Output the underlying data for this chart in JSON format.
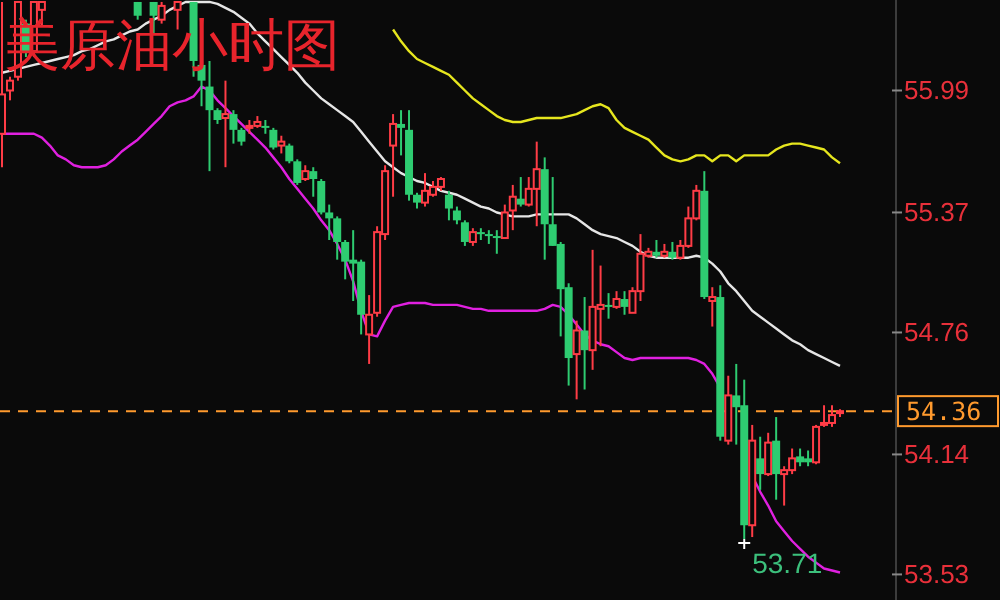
{
  "chart_data": {
    "type": "candlestick",
    "title": "美原油小时图",
    "categories": [
      null,
      null,
      null,
      null,
      null,
      null,
      null,
      null,
      null,
      null,
      null,
      null,
      null,
      null,
      null,
      null,
      null,
      null,
      null,
      null,
      null,
      null,
      null,
      null,
      null,
      null,
      null,
      null,
      null,
      null,
      null,
      null,
      null,
      null,
      null,
      null,
      null,
      null,
      null,
      null,
      null,
      null,
      null,
      null,
      null,
      null,
      null,
      null,
      null,
      null,
      null,
      null,
      null,
      null,
      null,
      null,
      null,
      null,
      null,
      null,
      null,
      null,
      null,
      null,
      null,
      null,
      null,
      null,
      null,
      null,
      null,
      null,
      null,
      null,
      null,
      null,
      null,
      null,
      null,
      null,
      null,
      null,
      null,
      null,
      null,
      null,
      null,
      null,
      null,
      null,
      null,
      null,
      null,
      null,
      null,
      null,
      null,
      null,
      null,
      null,
      null,
      null,
      null,
      null,
      null,
      null
    ],
    "ohlc": [
      [
        55.77,
        56.44,
        55.6,
        55.97
      ],
      [
        55.99,
        56.06,
        55.94,
        56.04
      ],
      [
        56.06,
        56.44,
        56.04,
        56.44
      ],
      [
        56.33,
        56.35,
        56.16,
        56.19
      ],
      [
        56.19,
        56.44,
        56.16,
        56.44
      ],
      [
        56.4,
        56.44,
        56.32,
        56.44
      ],
      null,
      null,
      null,
      null,
      null,
      null,
      null,
      null,
      null,
      null,
      null,
      [
        56.44,
        56.44,
        56.35,
        56.37
      ],
      null,
      [
        56.44,
        56.44,
        56.28,
        56.37
      ],
      [
        56.35,
        56.44,
        56.33,
        56.42
      ],
      null,
      [
        56.4,
        56.44,
        56.3,
        56.44
      ],
      null,
      [
        56.44,
        56.44,
        56.06,
        56.14
      ],
      [
        56.12,
        56.14,
        55.91,
        56.04
      ],
      [
        56.01,
        56.14,
        55.58,
        55.89
      ],
      [
        55.89,
        55.9,
        55.82,
        55.84
      ],
      [
        55.85,
        56.04,
        55.6,
        55.87
      ],
      [
        55.87,
        55.89,
        55.72,
        55.79
      ],
      [
        55.79,
        55.8,
        55.71,
        55.73
      ],
      [
        55.8,
        55.84,
        55.77,
        55.81
      ],
      [
        55.81,
        55.86,
        55.8,
        55.83
      ],
      [
        55.81,
        55.84,
        55.77,
        55.8
      ],
      [
        55.79,
        55.8,
        55.69,
        55.7
      ],
      [
        55.71,
        55.76,
        55.67,
        55.73
      ],
      [
        55.71,
        55.72,
        55.62,
        55.63
      ],
      [
        55.63,
        55.64,
        55.51,
        55.52
      ],
      [
        55.54,
        55.61,
        55.53,
        55.58
      ],
      [
        55.58,
        55.6,
        55.45,
        55.54
      ],
      [
        55.53,
        55.54,
        55.36,
        55.37
      ],
      [
        55.37,
        55.41,
        55.23,
        55.34
      ],
      [
        55.34,
        55.35,
        55.13,
        55.22
      ],
      [
        55.22,
        55.23,
        55.03,
        55.12
      ],
      [
        55.13,
        55.28,
        54.92,
        55.11
      ],
      [
        55.12,
        55.13,
        54.75,
        54.85
      ],
      [
        54.75,
        54.95,
        54.6,
        54.85
      ],
      [
        54.86,
        55.3,
        54.84,
        55.27
      ],
      [
        55.26,
        55.61,
        55.23,
        55.58
      ],
      [
        55.71,
        55.87,
        55.45,
        55.82
      ],
      [
        55.82,
        55.89,
        55.66,
        55.8
      ],
      [
        55.79,
        55.89,
        55.43,
        55.46
      ],
      [
        55.46,
        55.47,
        55.39,
        55.42
      ],
      [
        55.42,
        55.57,
        55.4,
        55.48
      ],
      [
        55.46,
        55.53,
        55.45,
        55.5
      ],
      [
        55.5,
        55.55,
        55.48,
        55.54
      ],
      [
        55.46,
        55.48,
        55.33,
        55.39
      ],
      [
        55.38,
        55.4,
        55.31,
        55.33
      ],
      [
        55.32,
        55.33,
        55.2,
        55.22
      ],
      [
        55.22,
        55.29,
        55.2,
        55.27
      ],
      [
        55.27,
        55.29,
        55.23,
        55.26
      ],
      [
        55.26,
        55.28,
        55.21,
        55.25
      ],
      [
        55.25,
        55.28,
        55.16,
        55.24
      ],
      [
        55.24,
        55.41,
        55.24,
        55.37
      ],
      [
        55.38,
        55.51,
        55.28,
        55.45
      ],
      [
        55.44,
        55.55,
        55.4,
        55.41
      ],
      [
        55.41,
        55.55,
        55.4,
        55.49
      ],
      [
        55.49,
        55.73,
        55.3,
        55.59
      ],
      [
        55.59,
        55.65,
        55.13,
        55.31
      ],
      [
        55.31,
        55.55,
        55.2,
        55.2
      ],
      [
        55.21,
        55.22,
        54.74,
        54.98
      ],
      [
        54.99,
        55.01,
        54.49,
        54.63
      ],
      [
        54.65,
        54.82,
        54.42,
        54.77
      ],
      [
        54.77,
        54.94,
        54.47,
        54.67
      ],
      [
        54.67,
        55.18,
        54.57,
        54.89
      ],
      [
        54.88,
        55.1,
        54.69,
        54.9
      ],
      [
        54.9,
        54.96,
        54.83,
        54.89
      ],
      [
        54.89,
        54.97,
        54.88,
        54.93
      ],
      [
        54.93,
        54.97,
        54.85,
        54.89
      ],
      [
        54.86,
        54.99,
        54.86,
        54.97
      ],
      [
        54.97,
        55.26,
        54.92,
        55.16
      ],
      [
        55.15,
        55.19,
        55.14,
        55.17
      ],
      [
        55.17,
        55.23,
        55.14,
        55.15
      ],
      [
        55.15,
        55.21,
        55.14,
        55.17
      ],
      [
        55.17,
        55.22,
        55.13,
        55.14
      ],
      [
        55.14,
        55.23,
        55.13,
        55.2
      ],
      [
        55.2,
        55.4,
        55.19,
        55.34
      ],
      [
        55.34,
        55.51,
        55.33,
        55.48
      ],
      [
        55.48,
        55.58,
        54.93,
        54.94
      ],
      [
        54.92,
        54.99,
        54.79,
        54.94
      ],
      [
        54.94,
        55.0,
        54.21,
        54.23
      ],
      [
        54.21,
        54.54,
        54.19,
        54.44
      ],
      [
        54.44,
        54.6,
        54.19,
        54.38
      ],
      [
        54.39,
        54.52,
        53.71,
        53.78
      ],
      [
        53.78,
        54.29,
        53.72,
        54.21
      ],
      [
        54.12,
        54.23,
        53.96,
        54.04
      ],
      [
        54.04,
        54.25,
        54.03,
        54.2
      ],
      [
        54.21,
        54.33,
        53.91,
        54.04
      ],
      [
        54.04,
        54.08,
        53.88,
        54.06
      ],
      [
        54.06,
        54.17,
        54.04,
        54.12
      ],
      [
        54.13,
        54.17,
        54.08,
        54.1
      ],
      [
        54.12,
        54.16,
        54.08,
        54.1
      ],
      [
        54.1,
        54.29,
        54.09,
        54.28
      ],
      [
        54.29,
        54.39,
        54.28,
        54.3
      ],
      [
        54.3,
        54.39,
        54.28,
        54.34
      ],
      [
        54.35,
        54.37,
        54.33,
        54.36
      ]
    ],
    "colors": [
      "#ff3c46",
      "#ff3c46",
      "#ff3c46",
      "#2ecc71",
      "#ff3c46",
      "#ff3c46",
      null,
      null,
      null,
      null,
      null,
      null,
      null,
      null,
      null,
      null,
      null,
      "#2ecc71",
      null,
      "#2ecc71",
      "#ff3c46",
      null,
      "#ff3c46",
      null,
      "#2ecc71",
      "#2ecc71",
      "#2ecc71",
      "#2ecc71",
      "#ff3c46",
      "#2ecc71",
      "#2ecc71",
      "#ff3c46",
      "#ff3c46",
      "#2ecc71",
      "#2ecc71",
      "#ff3c46",
      "#2ecc71",
      "#2ecc71",
      "#ff3c46",
      "#2ecc71",
      "#2ecc71",
      "#2ecc71",
      "#2ecc71",
      "#2ecc71",
      "#2ecc71",
      "#2ecc71",
      "#ff3c46",
      "#ff3c46",
      "#ff3c46",
      "#ff3c46",
      "#2ecc71",
      "#2ecc71",
      "#2ecc71",
      "#ff3c46",
      "#ff3c46",
      "#ff3c46",
      "#2ecc71",
      "#2ecc71",
      "#2ecc71",
      "#ff3c46",
      "#2ecc71",
      "#2ecc71",
      "#2ecc71",
      "#ff3c46",
      "#ff3c46",
      "#2ecc71",
      "#ff3c46",
      "#ff3c46",
      "#2ecc71",
      "#2ecc71",
      "#2ecc71",
      "#2ecc71",
      "#ff3c46",
      "#2ecc71",
      "#ff3c46",
      "#ff3c46",
      "#2ecc71",
      "#ff3c46",
      "#2ecc71",
      "#ff3c46",
      "#ff3c46",
      "#ff3c46",
      "#2ecc71",
      "#ff3c46",
      "#2ecc71",
      "#ff3c46",
      "#ff3c46",
      "#ff3c46",
      "#2ecc71",
      "#ff3c46",
      "#2ecc71",
      "#ff3c46",
      "#2ecc71",
      "#2ecc71",
      "#ff3c46",
      "#2ecc71",
      "#ff3c46",
      "#2ecc71",
      "#ff3c46",
      "#ff3c46",
      "#2ecc71",
      "#2ecc71",
      "#ff3c46",
      "#ff3c46",
      "#ff3c46",
      "#ff3c46"
    ],
    "series": [
      {
        "type": "line",
        "color": "#e6e61e",
        "values": [
          null,
          null,
          null,
          null,
          null,
          null,
          null,
          null,
          null,
          null,
          null,
          null,
          null,
          null,
          null,
          null,
          null,
          null,
          null,
          null,
          null,
          null,
          null,
          null,
          null,
          null,
          null,
          null,
          null,
          null,
          null,
          null,
          null,
          null,
          null,
          null,
          null,
          null,
          null,
          null,
          null,
          null,
          null,
          null,
          null,
          null,
          null,
          null,
          null,
          56.3,
          56.24,
          56.19,
          56.15,
          56.13,
          56.11,
          56.09,
          56.07,
          56.03,
          55.99,
          55.95,
          55.92,
          55.89,
          55.86,
          55.84,
          55.83,
          55.83,
          55.84,
          55.85,
          55.85,
          55.85,
          55.85,
          55.86,
          55.87,
          55.89,
          55.91,
          55.92,
          55.9,
          55.84,
          55.8,
          55.78,
          55.76,
          55.74,
          55.7,
          55.66,
          55.64,
          55.63,
          55.64,
          55.66,
          55.66,
          55.63,
          55.66,
          55.66,
          55.63,
          55.66,
          55.66,
          55.66,
          55.66,
          55.69,
          55.71,
          55.72,
          55.72,
          55.71,
          55.7,
          55.69,
          55.65,
          55.62
        ]
      },
      {
        "type": "line",
        "color": "#e6e6e6",
        "values": [
          56.08,
          56.09,
          56.1,
          56.11,
          56.12,
          56.13,
          56.14,
          56.15,
          56.16,
          56.17,
          56.19,
          56.2,
          56.22,
          56.24,
          56.25,
          56.27,
          56.29,
          56.3,
          56.33,
          56.35,
          56.37,
          56.4,
          56.42,
          56.44,
          56.44,
          56.44,
          56.44,
          56.43,
          56.41,
          56.39,
          56.36,
          56.33,
          56.28,
          56.24,
          56.2,
          56.16,
          56.12,
          56.08,
          56.03,
          55.99,
          55.95,
          55.92,
          55.89,
          55.86,
          55.83,
          55.78,
          55.73,
          55.68,
          55.63,
          55.6,
          55.57,
          55.55,
          55.53,
          55.52,
          55.5,
          55.48,
          55.47,
          55.46,
          55.44,
          55.42,
          55.4,
          55.39,
          55.37,
          55.36,
          55.35,
          55.35,
          55.35,
          55.36,
          55.36,
          55.36,
          55.36,
          55.36,
          55.34,
          55.31,
          55.28,
          55.26,
          55.25,
          55.24,
          55.22,
          55.2,
          55.17,
          55.15,
          55.14,
          55.14,
          55.14,
          55.14,
          55.14,
          55.15,
          55.14,
          55.11,
          55.07,
          55.01,
          54.97,
          54.92,
          54.87,
          54.84,
          54.81,
          54.78,
          54.75,
          54.72,
          54.7,
          54.67,
          54.65,
          54.63,
          54.61,
          54.59
        ]
      },
      {
        "type": "line",
        "color": "#e020e0",
        "values": [
          55.77,
          55.77,
          55.77,
          55.77,
          55.77,
          55.75,
          55.71,
          55.66,
          55.64,
          55.61,
          55.6,
          55.6,
          55.6,
          55.61,
          55.64,
          55.68,
          55.71,
          55.74,
          55.78,
          55.82,
          55.86,
          55.91,
          55.93,
          55.94,
          55.96,
          56.01,
          55.99,
          55.94,
          55.9,
          55.86,
          55.82,
          55.78,
          55.74,
          55.7,
          55.65,
          55.6,
          55.54,
          55.49,
          55.44,
          55.39,
          55.33,
          55.28,
          55.21,
          55.13,
          55.02,
          54.87,
          54.75,
          54.74,
          54.82,
          54.89,
          54.9,
          54.91,
          54.91,
          54.91,
          54.9,
          54.9,
          54.9,
          54.9,
          54.89,
          54.88,
          54.88,
          54.87,
          54.87,
          54.87,
          54.87,
          54.87,
          54.87,
          54.87,
          54.88,
          54.9,
          54.89,
          54.85,
          54.8,
          54.75,
          54.72,
          54.7,
          54.69,
          54.66,
          54.63,
          54.62,
          54.63,
          54.63,
          54.63,
          54.63,
          54.63,
          54.63,
          54.63,
          54.62,
          54.6,
          54.55,
          54.48,
          null,
          null,
          null,
          54.03,
          53.95,
          53.88,
          53.8,
          53.75,
          53.7,
          53.66,
          53.62,
          53.59,
          53.56,
          53.55,
          53.54
        ]
      }
    ],
    "ylim": [
      53.4,
      56.45
    ],
    "yticks": [
      55.99,
      55.37,
      54.76,
      54.14,
      53.53
    ],
    "ref_lines": [
      {
        "axis": "y",
        "value": 54.36,
        "label": "54.36",
        "color": "#ff9a2e",
        "line_style": "dashed"
      }
    ],
    "annotations": [
      "53.71"
    ]
  }
}
